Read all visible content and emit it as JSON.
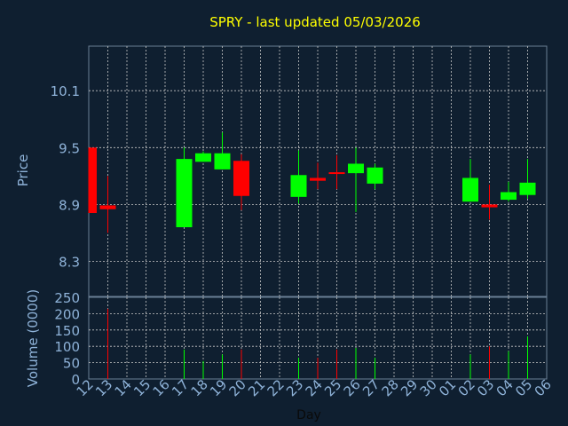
{
  "chart_data": {
    "type": "candlestick",
    "title": "SPRY - last updated 05/03/2026",
    "xlabel": "Day",
    "x": [
      "12",
      "13",
      "14",
      "15",
      "16",
      "17",
      "18",
      "19",
      "20",
      "21",
      "22",
      "23",
      "24",
      "25",
      "26",
      "27",
      "28",
      "29",
      "30",
      "01",
      "02",
      "03",
      "04",
      "05",
      "06"
    ],
    "price_panel": {
      "ylabel": "Price",
      "yticks": [
        "10.1",
        "9.5",
        "8.9",
        "8.3"
      ],
      "ylim": [
        7.93,
        10.57
      ],
      "grid": true,
      "candles": [
        {
          "day": "12",
          "open": 9.5,
          "close": 8.81,
          "high": 9.5,
          "low": 8.81
        },
        {
          "day": "13",
          "open": 8.89,
          "close": 8.85,
          "high": 9.2,
          "low": 8.6
        },
        {
          "day": "17",
          "open": 8.66,
          "close": 9.38,
          "high": 9.5,
          "low": 8.66
        },
        {
          "day": "18",
          "open": 9.35,
          "close": 9.44,
          "high": 9.46,
          "low": 9.35
        },
        {
          "day": "19",
          "open": 9.27,
          "close": 9.44,
          "high": 9.66,
          "low": 9.27
        },
        {
          "day": "20",
          "open": 9.36,
          "close": 8.99,
          "high": 9.43,
          "low": 8.84
        },
        {
          "day": "23",
          "open": 8.98,
          "close": 9.21,
          "high": 9.47,
          "low": 8.91
        },
        {
          "day": "24",
          "open": 9.18,
          "close": 9.15,
          "high": 9.34,
          "low": 9.06
        },
        {
          "day": "25",
          "open": 9.24,
          "close": 9.23,
          "high": 9.42,
          "low": 9.06
        },
        {
          "day": "26",
          "open": 9.23,
          "close": 9.33,
          "high": 9.5,
          "low": 8.82
        },
        {
          "day": "27",
          "open": 9.12,
          "close": 9.29,
          "high": 9.33,
          "low": 9.06
        },
        {
          "day": "02",
          "open": 8.93,
          "close": 9.18,
          "high": 9.38,
          "low": 8.93
        },
        {
          "day": "03",
          "open": 8.9,
          "close": 8.87,
          "high": 9.11,
          "low": 8.74
        },
        {
          "day": "04",
          "open": 8.95,
          "close": 9.03,
          "high": 9.14,
          "low": 8.93
        },
        {
          "day": "05",
          "open": 9.0,
          "close": 9.13,
          "high": 9.38,
          "low": 8.96
        }
      ]
    },
    "volume_panel": {
      "ylabel": "Volume (0000)",
      "yticks": [
        "250",
        "200",
        "150",
        "100",
        "50",
        "0"
      ],
      "ylim": [
        0,
        250
      ],
      "grid": true,
      "bars": [
        {
          "day": "13",
          "value": 215,
          "direction": "down"
        },
        {
          "day": "17",
          "value": 90,
          "direction": "up"
        },
        {
          "day": "18",
          "value": 55,
          "direction": "up"
        },
        {
          "day": "19",
          "value": 75,
          "direction": "up"
        },
        {
          "day": "20",
          "value": 90,
          "direction": "down"
        },
        {
          "day": "23",
          "value": 65,
          "direction": "up"
        },
        {
          "day": "24",
          "value": 65,
          "direction": "down"
        },
        {
          "day": "25",
          "value": 90,
          "direction": "down"
        },
        {
          "day": "26",
          "value": 95,
          "direction": "up"
        },
        {
          "day": "27",
          "value": 65,
          "direction": "up"
        },
        {
          "day": "02",
          "value": 75,
          "direction": "up"
        },
        {
          "day": "03",
          "value": 100,
          "direction": "down"
        },
        {
          "day": "04",
          "value": 85,
          "direction": "up"
        },
        {
          "day": "05",
          "value": 130,
          "direction": "up"
        }
      ]
    },
    "colors": {
      "background": "#0f1f30",
      "up": "#00ff00",
      "down": "#ff0000",
      "axis_text": "#8fb3d9",
      "title": "#ffff00",
      "grid": "#c8c8c8",
      "frame": "#6a7f95"
    }
  }
}
